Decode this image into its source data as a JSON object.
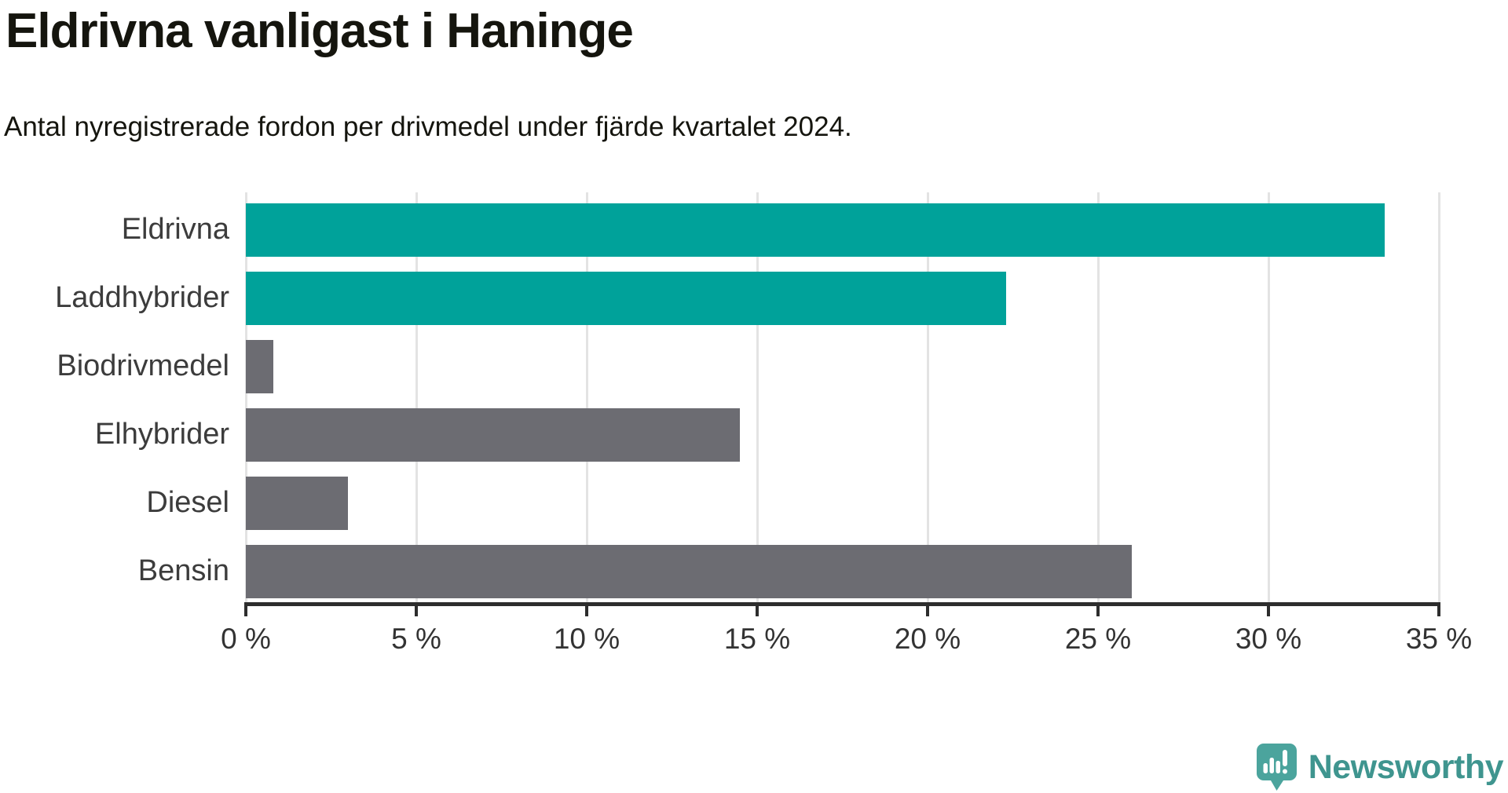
{
  "chart_data": {
    "type": "bar",
    "orientation": "horizontal",
    "title": "Eldrivna vanligast i Haninge",
    "subtitle": "Antal nyregistrerade fordon per drivmedel under fjärde kvartalet 2024.",
    "categories": [
      "Eldrivna",
      "Laddhybrider",
      "Biodrivmedel",
      "Elhybrider",
      "Diesel",
      "Bensin"
    ],
    "values": [
      33.4,
      22.3,
      0.8,
      14.5,
      3.0,
      26.0
    ],
    "unit": "%",
    "xlabel": "",
    "ylabel": "",
    "xlim": [
      0,
      35
    ],
    "x_ticks": [
      0,
      5,
      10,
      15,
      20,
      25,
      30,
      35
    ],
    "x_tick_suffix": " %",
    "grid": true,
    "legend": false,
    "bar_colors": [
      "#00a29a",
      "#00a29a",
      "#6c6c72",
      "#6c6c72",
      "#6c6c72",
      "#6c6c72"
    ],
    "highlight_color": "#00a29a",
    "default_bar_color": "#6c6c72",
    "gridline_color": "#e3e3e3",
    "axis_color": "#2d2d2d"
  },
  "branding": {
    "logo_text": "Newsworthy",
    "logo_text_color": "#3f958f",
    "logo_icon_color": "#4ba49d",
    "logo_icon": "speech-bubble-bar-chart-exclamation"
  }
}
